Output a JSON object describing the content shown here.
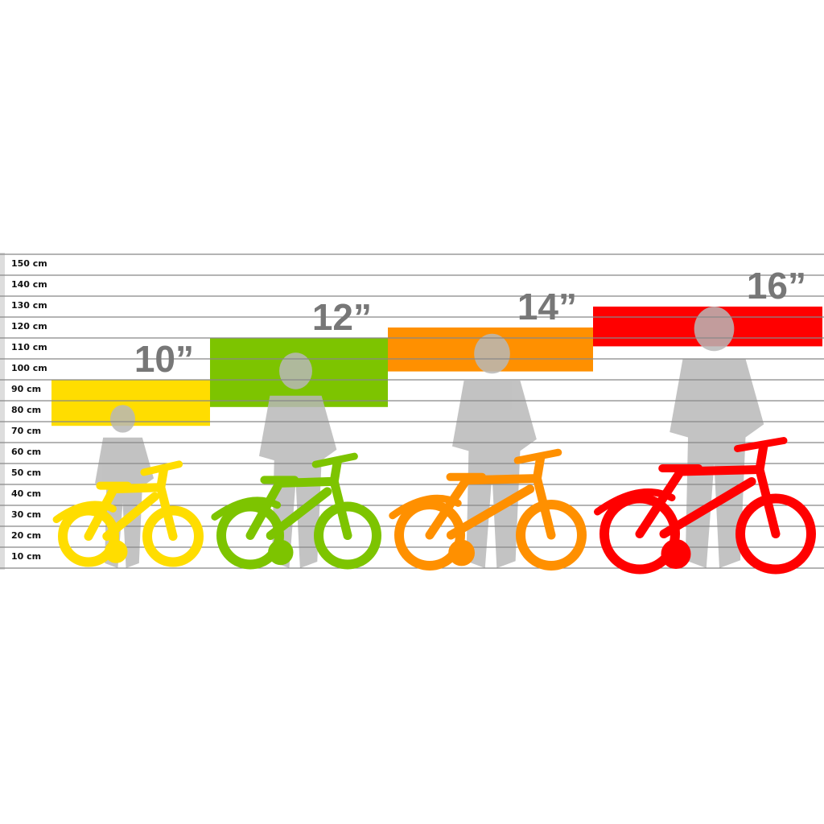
{
  "chart_data": {
    "type": "range-bar",
    "ylabel": "",
    "y_unit": "cm",
    "ylim": [
      0,
      150
    ],
    "grid": true,
    "y_ticks": [
      "10 cm",
      "20 cm",
      "30 cm",
      "40 cm",
      "50 cm",
      "60 cm",
      "70 cm",
      "80 cm",
      "90 cm",
      "100 cm",
      "110 cm",
      "120 cm",
      "130 cm",
      "140 cm",
      "150 cm"
    ],
    "categories": [
      "10”",
      "12”",
      "14”",
      "16”"
    ],
    "series": [
      {
        "category": "10”",
        "min_cm": 68,
        "max_cm": 90,
        "color": "#FFDD00"
      },
      {
        "category": "12”",
        "min_cm": 77,
        "max_cm": 110,
        "color": "#7DC400"
      },
      {
        "category": "14”",
        "min_cm": 94,
        "max_cm": 115,
        "color": "#FF9000"
      },
      {
        "category": "16”",
        "min_cm": 106,
        "max_cm": 125,
        "color": "#FF0000"
      }
    ],
    "silhouette_color": "#B8B8B8",
    "label_color": "#777777"
  }
}
